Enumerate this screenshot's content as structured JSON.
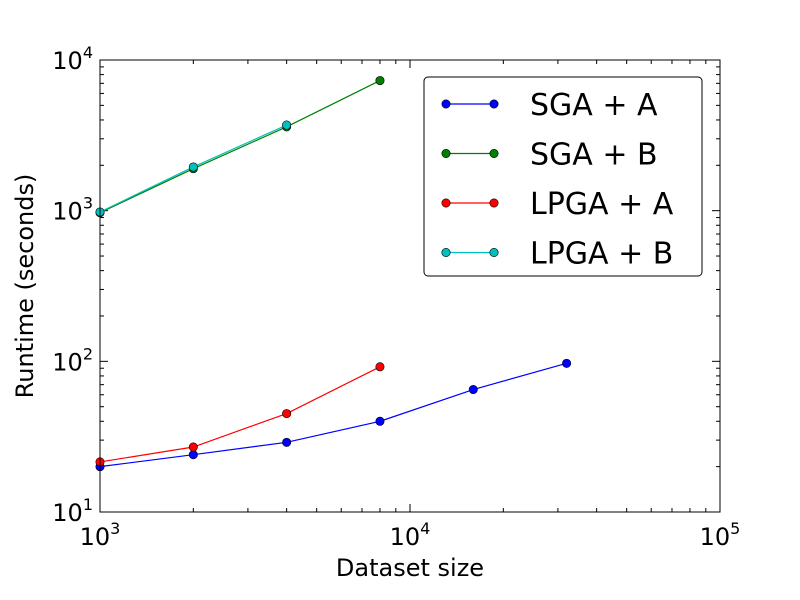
{
  "chart_data": {
    "type": "line",
    "xscale": "log",
    "yscale": "log",
    "xlim": [
      1000,
      100000
    ],
    "ylim": [
      10,
      10000
    ],
    "xlabel": "Dataset size",
    "ylabel": "Runtime (seconds)",
    "x_ticks": [
      {
        "value": 1000,
        "base": "10",
        "exp": "3"
      },
      {
        "value": 10000,
        "base": "10",
        "exp": "4"
      },
      {
        "value": 100000,
        "base": "10",
        "exp": "5"
      }
    ],
    "y_ticks": [
      {
        "value": 10,
        "base": "10",
        "exp": "1"
      },
      {
        "value": 100,
        "base": "10",
        "exp": "2"
      },
      {
        "value": 1000,
        "base": "10",
        "exp": "3"
      },
      {
        "value": 10000,
        "base": "10",
        "exp": "4"
      }
    ],
    "grid": false,
    "legend_position": "top-right",
    "series": [
      {
        "name": "SGA + A",
        "color": "#0000ff",
        "x": [
          1000,
          2000,
          4000,
          8000,
          16000,
          32000
        ],
        "y": [
          20,
          24,
          29,
          40,
          65,
          97
        ]
      },
      {
        "name": "SGA + B",
        "color": "#007f00",
        "x": [
          1000,
          2000,
          4000,
          8000
        ],
        "y": [
          970,
          1900,
          3600,
          7300
        ]
      },
      {
        "name": "LPGA + A",
        "color": "#ff0000",
        "x": [
          1000,
          2000,
          4000,
          8000
        ],
        "y": [
          21.5,
          27,
          45,
          92
        ]
      },
      {
        "name": "LPGA + B",
        "color": "#00bfbf",
        "x": [
          1000,
          2000,
          4000
        ],
        "y": [
          980,
          1950,
          3700
        ]
      }
    ]
  }
}
